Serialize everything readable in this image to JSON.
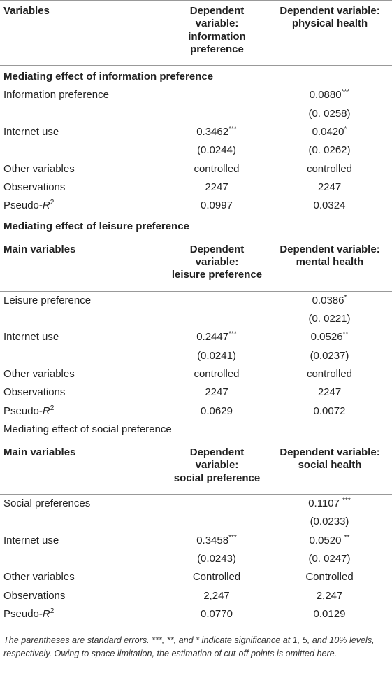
{
  "table": {
    "rows": [
      {
        "kind": "header",
        "cells": [
          "Variables",
          [
            "Dependent variable:",
            "information",
            "preference"
          ],
          [
            "Dependent variable:",
            "physical health"
          ]
        ]
      },
      {
        "kind": "section-bold",
        "cells": [
          "Mediating effect of information preference"
        ]
      },
      {
        "kind": "data",
        "cells": [
          "Information preference",
          null,
          {
            "text": "0.0880",
            "sup": "***"
          }
        ]
      },
      {
        "kind": "data",
        "cells": [
          null,
          null,
          "(0. 0258)"
        ]
      },
      {
        "kind": "data",
        "cells": [
          "Internet use",
          {
            "text": "0.3462",
            "sup": "***"
          },
          {
            "text": "0.0420",
            "sup": "*"
          }
        ]
      },
      {
        "kind": "data",
        "cells": [
          null,
          "(0.0244)",
          "(0. 0262)"
        ]
      },
      {
        "kind": "data",
        "cells": [
          "Other variables",
          "controlled",
          "controlled"
        ]
      },
      {
        "kind": "data",
        "cells": [
          "Observations",
          "2247",
          "2247"
        ]
      },
      {
        "kind": "data",
        "cells": [
          {
            "text": "Pseudo-",
            "em": "R",
            "sup": "2"
          },
          "0.0997",
          "0.0324"
        ]
      },
      {
        "kind": "section-bold",
        "cells": [
          "Mediating effect of leisure preference"
        ]
      },
      {
        "kind": "header",
        "cells": [
          "Main variables",
          [
            "Dependent variable:",
            "leisure preference"
          ],
          [
            "Dependent variable:",
            "mental health"
          ]
        ]
      },
      {
        "kind": "data",
        "cells": [
          "Leisure preference",
          null,
          {
            "text": "0.0386",
            "sup": "*"
          }
        ]
      },
      {
        "kind": "data",
        "cells": [
          null,
          null,
          "(0. 0221)"
        ]
      },
      {
        "kind": "data",
        "cells": [
          "Internet use",
          {
            "text": "0.2447",
            "sup": "***"
          },
          {
            "text": "0.0526",
            "sup": "**"
          }
        ]
      },
      {
        "kind": "data",
        "cells": [
          null,
          "(0.0241)",
          "(0.0237)"
        ]
      },
      {
        "kind": "data",
        "cells": [
          "Other variables",
          "controlled",
          "controlled"
        ]
      },
      {
        "kind": "data",
        "cells": [
          "Observations",
          "2247",
          "2247"
        ]
      },
      {
        "kind": "data",
        "cells": [
          {
            "text": "Pseudo-",
            "em": "R",
            "sup": "2"
          },
          "0.0629",
          "0.0072"
        ]
      },
      {
        "kind": "section",
        "cells": [
          "Mediating effect of social preference"
        ]
      },
      {
        "kind": "header",
        "cells": [
          "Main variables",
          [
            "Dependent variable:",
            "social preference"
          ],
          [
            "Dependent variable:",
            "social health"
          ]
        ]
      },
      {
        "kind": "data",
        "cells": [
          "Social preferences",
          null,
          {
            "text": "0.1107 ",
            "sup": "***"
          }
        ]
      },
      {
        "kind": "data",
        "cells": [
          null,
          null,
          "(0.0233)"
        ]
      },
      {
        "kind": "data",
        "cells": [
          "Internet use",
          {
            "text": "0.3458",
            "sup": "***"
          },
          {
            "text": "0.0520 ",
            "sup": "**"
          }
        ]
      },
      {
        "kind": "data",
        "cells": [
          null,
          "(0.0243)",
          "(0. 0247)"
        ]
      },
      {
        "kind": "data",
        "cells": [
          "Other variables",
          "Controlled",
          "Controlled"
        ]
      },
      {
        "kind": "data",
        "cells": [
          "Observations",
          "2,247",
          "2,247"
        ]
      },
      {
        "kind": "data",
        "cells": [
          {
            "text": "Pseudo-",
            "em": "R",
            "sup": "2"
          },
          "0.0770",
          "0.0129"
        ]
      }
    ],
    "footnote": "The parentheses are standard errors. ***, **, and * indicate significance at 1, 5, and 10% levels, respectively. Owing to space limitation, the estimation of cut-off points is omitted here."
  }
}
